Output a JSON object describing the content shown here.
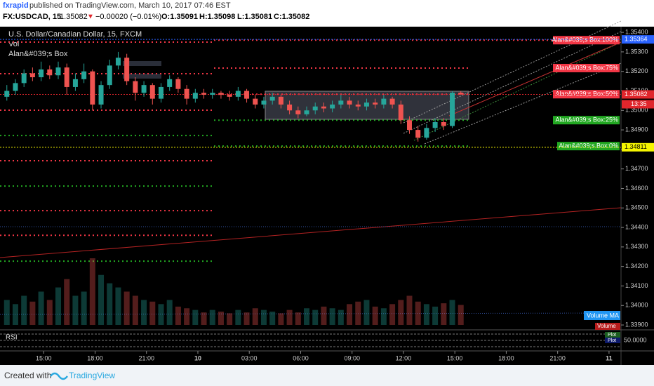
{
  "header": {
    "publisher": "fxrapid",
    "published": "published on TradingView.com, March 10, 2017 07:46 EST",
    "symbol": "FX:USDCAD, 15",
    "last": "1.35082",
    "change": "−0.00020 (−0.01%)",
    "open": "O:1.35091",
    "high": "H:1.35098",
    "low": "L:1.35081",
    "close": "C:1.35082"
  },
  "chart_data": {
    "type": "candlestick",
    "title": "U.S. Dollar/Canadian Dollar, 15, FXCM",
    "indicators": [
      "Vol",
      "Alan&#039;s Box"
    ],
    "up_color": "#26a69a",
    "down_color": "#ef5350",
    "open": [
      1.3507,
      1.351,
      1.3514,
      1.3519,
      1.3517,
      1.3521,
      1.3518,
      1.3522,
      1.3512,
      1.3516,
      1.352,
      1.3503,
      1.3513,
      1.3523,
      1.3527,
      1.3515,
      1.3509,
      1.3513,
      1.3506,
      1.3512,
      1.3516,
      1.3511,
      1.3506,
      1.3509,
      1.3508,
      1.3509,
      1.3508,
      1.3507,
      1.351,
      1.3506,
      1.3503,
      1.3505,
      1.3507,
      1.3503,
      1.35,
      1.3498,
      1.35,
      1.3502,
      1.3501,
      1.3503,
      1.3505,
      1.3503,
      1.3502,
      1.3504,
      1.3503,
      1.3506,
      1.3503,
      1.3495,
      1.349,
      1.3486,
      1.3491,
      1.3494,
      1.3492,
      1.35091
    ],
    "high": [
      1.3513,
      1.3516,
      1.3521,
      1.3522,
      1.3525,
      1.3523,
      1.3525,
      1.3524,
      1.3519,
      1.3524,
      1.3521,
      1.3515,
      1.3526,
      1.353,
      1.3529,
      1.3517,
      1.3515,
      1.3514,
      1.3514,
      1.3518,
      1.3517,
      1.3513,
      1.3511,
      1.3511,
      1.3511,
      1.351,
      1.351,
      1.3512,
      1.3511,
      1.3508,
      1.3507,
      1.3509,
      1.3508,
      1.3505,
      1.3502,
      1.3502,
      1.3504,
      1.3504,
      1.3505,
      1.3508,
      1.3507,
      1.3505,
      1.3506,
      1.3506,
      1.3508,
      1.3507,
      1.3505,
      1.3497,
      1.3492,
      1.3493,
      1.3496,
      1.3496,
      1.351,
      1.35098
    ],
    "low": [
      1.3505,
      1.3508,
      1.3512,
      1.3515,
      1.3515,
      1.3516,
      1.3516,
      1.3508,
      1.351,
      1.3514,
      1.35,
      1.3501,
      1.3511,
      1.3521,
      1.3513,
      1.3505,
      1.3507,
      1.3503,
      1.3504,
      1.351,
      1.3509,
      1.3503,
      1.3504,
      1.3506,
      1.3506,
      1.3506,
      1.3505,
      1.3505,
      1.3504,
      1.3501,
      1.3501,
      1.3503,
      1.3501,
      1.3498,
      1.3496,
      1.3497,
      1.3498,
      1.3499,
      1.3499,
      1.3501,
      1.3501,
      1.35,
      1.35,
      1.3501,
      1.3501,
      1.3501,
      1.3493,
      1.3488,
      1.3484,
      1.3485,
      1.3489,
      1.349,
      1.3491,
      1.35081
    ],
    "close": [
      1.351,
      1.3514,
      1.3519,
      1.3517,
      1.3521,
      1.3518,
      1.3522,
      1.3512,
      1.3516,
      1.352,
      1.3503,
      1.3513,
      1.3523,
      1.3527,
      1.3515,
      1.3509,
      1.3513,
      1.3506,
      1.3512,
      1.3516,
      1.3511,
      1.3506,
      1.3509,
      1.3508,
      1.3509,
      1.3508,
      1.3507,
      1.351,
      1.3506,
      1.3503,
      1.3505,
      1.3507,
      1.3503,
      1.35,
      1.3498,
      1.35,
      1.3502,
      1.3501,
      1.3503,
      1.3505,
      1.3503,
      1.3502,
      1.3504,
      1.3503,
      1.3506,
      1.3503,
      1.3495,
      1.349,
      1.3486,
      1.3491,
      1.3494,
      1.3492,
      1.35091,
      1.35082
    ],
    "volume": [
      30,
      25,
      35,
      28,
      40,
      30,
      45,
      55,
      35,
      40,
      80,
      60,
      50,
      45,
      40,
      35,
      30,
      28,
      25,
      30,
      22,
      20,
      18,
      15,
      18,
      16,
      14,
      18,
      15,
      20,
      18,
      16,
      14,
      18,
      15,
      20,
      18,
      22,
      20,
      18,
      25,
      28,
      30,
      22,
      20,
      25,
      30,
      35,
      28,
      25,
      22,
      26,
      30,
      24
    ],
    "volume_label": "Volume",
    "volume_ma_label": "Volume MA",
    "xlim": [
      -0.8,
      71.7
    ],
    "xticks": [
      {
        "value": 4.3,
        "label": "15:00"
      },
      {
        "value": 10.3,
        "label": "18:00"
      },
      {
        "value": 16.3,
        "label": "21:00"
      },
      {
        "value": 22.3,
        "label": "10"
      },
      {
        "value": 28.3,
        "label": "03:00"
      },
      {
        "value": 34.3,
        "label": "06:00"
      },
      {
        "value": 40.3,
        "label": "09:00"
      },
      {
        "value": 46.3,
        "label": "12:00"
      },
      {
        "value": 52.3,
        "label": "15:00"
      },
      {
        "value": 58.3,
        "label": "18:00"
      },
      {
        "value": 64.3,
        "label": "21:00"
      },
      {
        "value": 70.3,
        "label": "11"
      }
    ],
    "ylim": [
      1.33875,
      1.35422
    ],
    "yticks": [
      {
        "value": 1.354,
        "label": "1.35400"
      },
      {
        "value": 1.353,
        "label": "1.35300"
      },
      {
        "value": 1.352,
        "label": "1.35200"
      },
      {
        "value": 1.351,
        "label": "1.35100"
      },
      {
        "value": 1.35,
        "label": "1.35000"
      },
      {
        "value": 1.349,
        "label": "1.34900"
      },
      {
        "value": 1.348,
        "label": "1.34800"
      },
      {
        "value": 1.347,
        "label": "1.34700"
      },
      {
        "value": 1.346,
        "label": "1.34600"
      },
      {
        "value": 1.345,
        "label": "1.34500"
      },
      {
        "value": 1.344,
        "label": "1.34400"
      },
      {
        "value": 1.343,
        "label": "1.34300"
      },
      {
        "value": 1.342,
        "label": "1.34200"
      },
      {
        "value": 1.341,
        "label": "1.34100"
      },
      {
        "value": 1.34,
        "label": "1.34000"
      },
      {
        "value": 1.339,
        "label": "1.33900"
      }
    ],
    "levels": [
      {
        "label": "Alan&#039;s Box:100%",
        "value": 1.3536,
        "color": "#f23645"
      },
      {
        "label": "Alan&#039;s Box:75%",
        "value": 1.35217,
        "color": "#f23645"
      },
      {
        "label": "Alan&#039;s Box:50%",
        "value": 1.35083,
        "color": "#f23645"
      },
      {
        "label": "Alan&#039;s Box:25%",
        "value": 1.3495,
        "color": "#22a822"
      },
      {
        "label": "Alan&#039;s Box:0%",
        "value": 1.34817,
        "color": "#22a822"
      }
    ],
    "old_levels": [
      {
        "value": 1.3535,
        "color": "#f23645"
      },
      {
        "value": 1.35188,
        "color": "#f23645"
      },
      {
        "value": 1.35001,
        "color": "#f23645"
      },
      {
        "value": 1.34871,
        "color": "#22a822"
      },
      {
        "value": 1.34742,
        "color": "#f23645"
      },
      {
        "value": 1.34612,
        "color": "#22a822"
      },
      {
        "value": 1.34486,
        "color": "#f23645"
      },
      {
        "value": 1.3436,
        "color": "#f23645"
      },
      {
        "value": 1.34227,
        "color": "#22a822"
      }
    ],
    "price_labels": [
      {
        "value": 1.35364,
        "label": "1.35364",
        "color": "#2962ff"
      },
      {
        "value": 1.35082,
        "label": "1.35082",
        "color": "#e0262c"
      },
      {
        "value": 1.34811,
        "label": "1.34811",
        "color": "#f5f500"
      }
    ],
    "countdown": "13:35",
    "rsi": {
      "label": "RSI",
      "ylim": [
        0,
        100
      ],
      "ticks": [
        {
          "value": 50,
          "label": "50.0000"
        }
      ],
      "plot_labels": [
        "Plot",
        "Plot"
      ]
    }
  },
  "footer": {
    "created": "Created with",
    "brand": "TradingView"
  }
}
